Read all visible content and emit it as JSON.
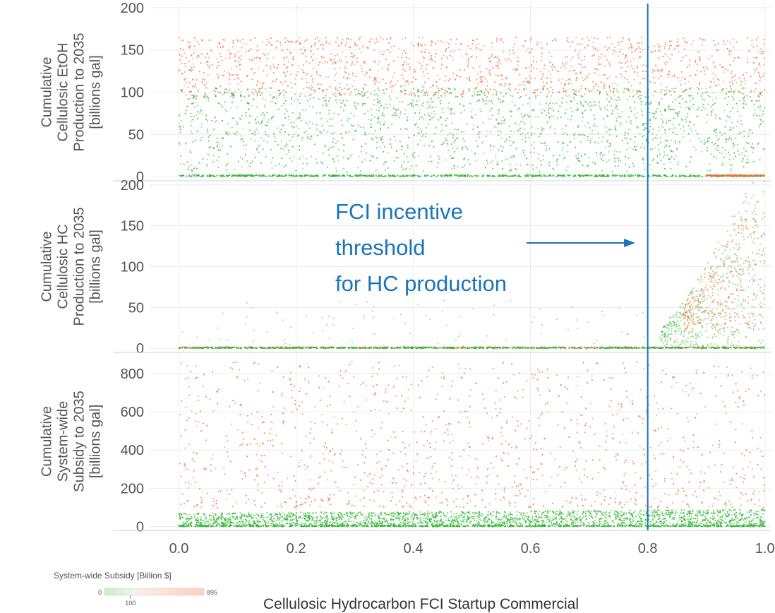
{
  "chart_data": {
    "type": "scatter",
    "xlabel": "Cellulosic Hydrocarbon FCI Startup Commercial",
    "xlim": [
      -0.05,
      1.01
    ],
    "xticks": [
      "0.0",
      "0.2",
      "0.4",
      "0.6",
      "0.8",
      "1.0"
    ],
    "threshold_x": 0.8,
    "colors": {
      "low": "#2db52d",
      "high": "#f0703c",
      "threshold": "#1a74b8"
    },
    "annotation": {
      "lines": [
        "FCI incentive",
        "threshold",
        "for HC production"
      ],
      "color": "#1a74b8"
    },
    "legend": {
      "title": "System-wide Subsidy [Billion $]",
      "min_label": "0",
      "mid_label": "100",
      "max_label": "895",
      "min": 0,
      "mid": 100,
      "max": 895,
      "low_color": "#c8ecc8",
      "high_color": "#fcd2c0"
    },
    "panels": [
      {
        "ylabel": [
          "Cumulative",
          "Cellulosic EtOH",
          "Production to 2035",
          "[billions gal]"
        ],
        "yticks": [
          "0",
          "50",
          "100",
          "150",
          "200"
        ],
        "ylim": [
          -5,
          205
        ],
        "description": "Green points mostly 0-100, orange points 100-160, dense baseline at 0"
      },
      {
        "ylabel": [
          "Cumulative",
          "Cellulosic HC",
          "Production to 2035",
          "[billions gal]"
        ],
        "yticks": [
          "0",
          "50",
          "100",
          "150",
          "200"
        ],
        "ylim": [
          -5,
          205
        ],
        "description": "Near zero for x < 0.8; rises to 0-180 for x > 0.85"
      },
      {
        "ylabel": [
          "Cumulative",
          "System-wide",
          "Subsidy to 2035",
          "[billions gal]"
        ],
        "yticks": [
          "0",
          "200",
          "400",
          "600",
          "800"
        ],
        "ylim": [
          -20,
          910
        ],
        "description": "Green band 0-80, orange scattered 100-850"
      }
    ]
  }
}
